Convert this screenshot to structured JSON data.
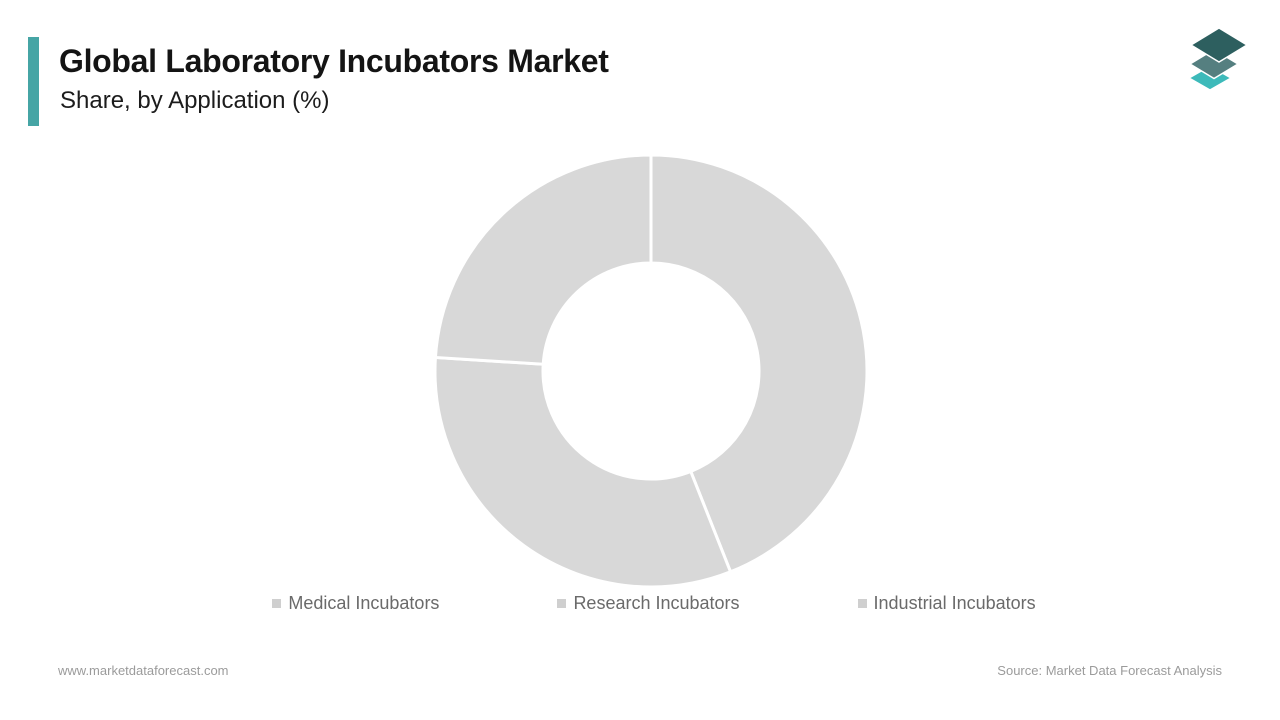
{
  "header": {
    "title": "Global Laboratory Incubators Market",
    "subtitle": "Share, by Application (%)",
    "accent_color": "#46a5a5"
  },
  "logo": {
    "name": "market-data-forecast-logo",
    "layer_colors": [
      "#2d5f5f",
      "#557f80",
      "#3dbaba"
    ]
  },
  "chart_data": {
    "type": "pie",
    "variant": "donut",
    "title": "Global Laboratory Incubators Market Share, by Application (%)",
    "unit": "%",
    "categories": [
      "Medical Incubators",
      "Research Incubators",
      "Industrial Incubators"
    ],
    "values": [
      44,
      32,
      24
    ],
    "value_labels_shown": false,
    "slice_colors": [
      "#d8d8d8",
      "#d8d8d8",
      "#d8d8d8"
    ],
    "divider_color": "#ffffff",
    "inner_radius_ratio": 0.5,
    "start_angle_deg": 0,
    "legend_position": "bottom",
    "legend_marker_color": "#cfcfcf",
    "legend_text_color": "#6a6a6a"
  },
  "footer": {
    "website": "www.marketdataforecast.com",
    "source": "Source: Market Data Forecast Analysis"
  }
}
